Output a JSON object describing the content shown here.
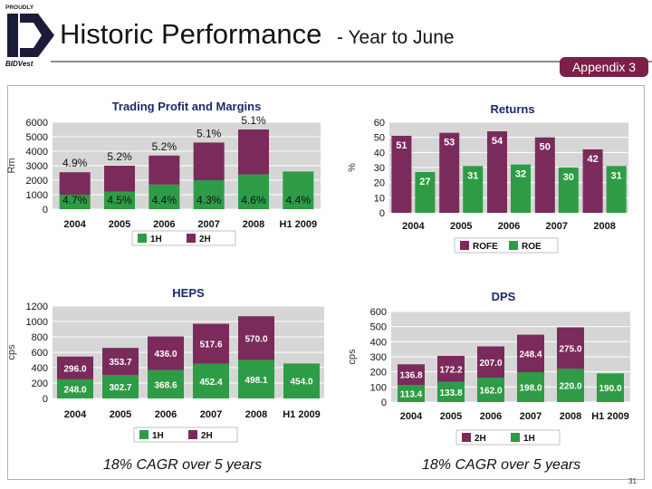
{
  "header": {
    "logo_tagline": "PROUDLY",
    "logo_name": "BIDVest",
    "title": "Historic Performance",
    "subtitle": "- Year to June",
    "appendix": "Appendix 3",
    "page_number": "31"
  },
  "colors": {
    "purple": "#7b2a5c",
    "green": "#2e9c46",
    "maroon": "#7a2048"
  },
  "captions": {
    "heps": "18% CAGR over 5 years",
    "dps": "18% CAGR over 5 years"
  },
  "chart_data": [
    {
      "id": "trading",
      "type": "bar",
      "stacked": true,
      "title": "Trading Profit and Margins",
      "ylabel": "Rm",
      "ylim": [
        0,
        6000
      ],
      "yticks": [
        0,
        1000,
        2000,
        3000,
        4000,
        5000,
        6000
      ],
      "categories": [
        "2004",
        "2005",
        "2006",
        "2007",
        "2008",
        "H1 2009"
      ],
      "series": [
        {
          "name": "1H",
          "values": [
            1000,
            1200,
            1700,
            2000,
            2400,
            2600
          ]
        },
        {
          "name": "2H",
          "values": [
            1550,
            1800,
            2000,
            2600,
            3100,
            null
          ]
        }
      ],
      "labels_1h": [
        "4.7%",
        "4.5%",
        "4.4%",
        "4.3%",
        "4.6%",
        "4.4%"
      ],
      "labels_2h": [
        "4.9%",
        "5.2%",
        "5.2%",
        "5.1%",
        "5.1%",
        ""
      ],
      "legend": "bottom"
    },
    {
      "id": "returns",
      "type": "bar",
      "grouped": true,
      "title": "Returns",
      "ylabel": "%",
      "ylim": [
        0,
        60
      ],
      "yticks": [
        0,
        10,
        20,
        30,
        40,
        50,
        60
      ],
      "categories": [
        "2004",
        "2005",
        "2006",
        "2007",
        "2008"
      ],
      "series": [
        {
          "name": "ROFE",
          "values": [
            51,
            53,
            54,
            50,
            42
          ]
        },
        {
          "name": "ROE",
          "values": [
            27,
            31,
            32,
            30,
            31
          ]
        }
      ],
      "legend": "bottom"
    },
    {
      "id": "heps",
      "type": "bar",
      "stacked": true,
      "title": "HEPS",
      "ylabel": "cps",
      "ylim": [
        0,
        1200
      ],
      "yticks": [
        0,
        200,
        400,
        600,
        800,
        1000,
        1200
      ],
      "categories": [
        "2004",
        "2005",
        "2006",
        "2007",
        "2008",
        "H1 2009"
      ],
      "series": [
        {
          "name": "1H",
          "values": [
            248.0,
            302.7,
            368.6,
            452.4,
            498.1,
            454.0
          ]
        },
        {
          "name": "2H",
          "values": [
            296.0,
            353.7,
            436.0,
            517.6,
            570.0,
            null
          ]
        }
      ],
      "legend": "bottom"
    },
    {
      "id": "dps",
      "type": "bar",
      "stacked": true,
      "title": "DPS",
      "ylabel": "cps",
      "ylim": [
        0,
        600
      ],
      "yticks": [
        0,
        100,
        200,
        300,
        400,
        500,
        600
      ],
      "categories": [
        "2004",
        "2005",
        "2006",
        "2007",
        "2008",
        "H1 2009"
      ],
      "series": [
        {
          "name": "1H",
          "values": [
            113.4,
            133.8,
            162.0,
            198.0,
            220.0,
            190.0
          ]
        },
        {
          "name": "2H",
          "values": [
            136.8,
            172.2,
            207.0,
            248.4,
            275.0,
            null
          ]
        }
      ],
      "legend": "bottom",
      "legend_order": [
        "2H",
        "1H"
      ]
    }
  ]
}
